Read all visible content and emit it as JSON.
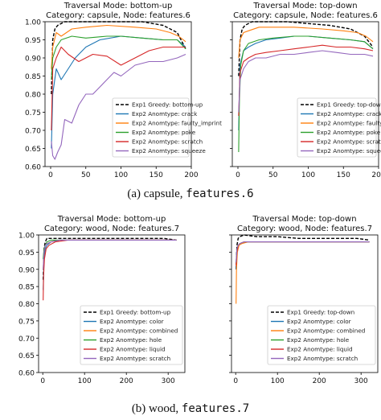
{
  "captions": {
    "a": {
      "label": "(a) capsule, ",
      "code": "features.6"
    },
    "b": {
      "label": "(b) wood, ",
      "code": "features.7"
    }
  },
  "colors": {
    "exp1": "#000000",
    "blue": "#1f77b4",
    "orange": "#ff7f0e",
    "green": "#2ca02c",
    "red": "#d62728",
    "purple": "#9467bd"
  },
  "chart_data": [
    {
      "type": "line",
      "title": "Traversal Mode: bottom-up",
      "subtitle": "Category: capsule, Node: features.6",
      "xlim": [
        -8,
        200
      ],
      "ylim": [
        0.6,
        1.0
      ],
      "xticks": [
        "0",
        "50",
        "100",
        "150",
        "200"
      ],
      "yticks": [
        "0.60",
        "0.65",
        "0.70",
        "0.75",
        "0.80",
        "0.85",
        "0.90",
        "0.95",
        "1.00"
      ],
      "legend_position": "lower-right",
      "series": [
        {
          "name": "Exp1 Greedy: bottom-up",
          "color": "exp1",
          "dashed": true,
          "x": [
            1,
            3,
            6,
            10,
            20,
            40,
            70,
            100,
            130,
            160,
            180,
            192
          ],
          "y": [
            0.8,
            0.95,
            0.98,
            0.99,
            1.0,
            1.0,
            1.0,
            1.0,
            1.0,
            0.99,
            0.97,
            0.925
          ]
        },
        {
          "name": "Exp2 Anomtype: crack",
          "color": "blue",
          "dashed": false,
          "x": [
            1,
            3,
            8,
            15,
            25,
            35,
            50,
            70,
            100,
            130,
            160,
            180,
            192
          ],
          "y": [
            0.65,
            0.8,
            0.87,
            0.84,
            0.87,
            0.9,
            0.93,
            0.95,
            0.96,
            0.955,
            0.95,
            0.95,
            0.93
          ]
        },
        {
          "name": "Exp2 Anomtype: faulty_imprint",
          "color": "orange",
          "dashed": false,
          "x": [
            1,
            3,
            8,
            15,
            30,
            50,
            80,
            120,
            150,
            170,
            182,
            192
          ],
          "y": [
            0.87,
            0.93,
            0.97,
            0.96,
            0.98,
            0.985,
            0.99,
            0.985,
            0.98,
            0.97,
            0.96,
            0.945
          ]
        },
        {
          "name": "Exp2 Anomtype: poke",
          "color": "green",
          "dashed": false,
          "x": [
            1,
            3,
            8,
            15,
            30,
            50,
            80,
            100,
            130,
            160,
            180,
            192
          ],
          "y": [
            0.84,
            0.9,
            0.93,
            0.95,
            0.96,
            0.955,
            0.96,
            0.96,
            0.955,
            0.95,
            0.95,
            0.925
          ]
        },
        {
          "name": "Exp2 Anomtype: scratch",
          "color": "red",
          "dashed": false,
          "x": [
            1,
            3,
            8,
            15,
            25,
            40,
            60,
            80,
            100,
            120,
            140,
            160,
            180,
            192
          ],
          "y": [
            0.7,
            0.87,
            0.9,
            0.93,
            0.91,
            0.89,
            0.91,
            0.905,
            0.88,
            0.9,
            0.92,
            0.93,
            0.93,
            0.93
          ]
        },
        {
          "name": "Exp2 Anomtype: squeeze",
          "color": "purple",
          "dashed": false,
          "x": [
            1,
            3,
            6,
            10,
            15,
            20,
            30,
            40,
            50,
            60,
            70,
            80,
            90,
            100,
            120,
            140,
            160,
            180,
            192
          ],
          "y": [
            0.67,
            0.63,
            0.62,
            0.64,
            0.66,
            0.73,
            0.72,
            0.77,
            0.8,
            0.8,
            0.82,
            0.84,
            0.86,
            0.85,
            0.88,
            0.89,
            0.89,
            0.9,
            0.91
          ]
        }
      ]
    },
    {
      "type": "line",
      "title": "Traversal Mode: top-down",
      "subtitle": "Category: capsule, Node: features.6",
      "xlim": [
        -8,
        200
      ],
      "ylim": [
        0.6,
        1.0
      ],
      "xticks": [
        "0",
        "50",
        "100",
        "150",
        "200"
      ],
      "yticks": [],
      "legend_position": "lower-right",
      "series": [
        {
          "name": "Exp1 Greedy: top-down",
          "color": "exp1",
          "dashed": true,
          "x": [
            1,
            3,
            6,
            10,
            20,
            40,
            70,
            100,
            130,
            160,
            180,
            192
          ],
          "y": [
            0.85,
            0.95,
            0.98,
            0.99,
            1.0,
            1.0,
            1.0,
            0.995,
            0.99,
            0.98,
            0.96,
            0.93
          ]
        },
        {
          "name": "Exp2 Anomtype: crack",
          "color": "blue",
          "dashed": false,
          "x": [
            1,
            3,
            8,
            15,
            25,
            40,
            60,
            80,
            100,
            130,
            160,
            180,
            192
          ],
          "y": [
            0.7,
            0.88,
            0.92,
            0.93,
            0.94,
            0.95,
            0.955,
            0.96,
            0.96,
            0.955,
            0.95,
            0.945,
            0.925
          ]
        },
        {
          "name": "Exp2 Anomtype: faulty_imprint",
          "color": "orange",
          "dashed": false,
          "x": [
            1,
            3,
            8,
            15,
            30,
            50,
            80,
            120,
            150,
            170,
            182,
            192
          ],
          "y": [
            0.9,
            0.95,
            0.97,
            0.975,
            0.985,
            0.985,
            0.985,
            0.98,
            0.975,
            0.97,
            0.96,
            0.945
          ]
        },
        {
          "name": "Exp2 Anomtype: poke",
          "color": "green",
          "dashed": false,
          "x": [
            1,
            2,
            4,
            8,
            15,
            30,
            50,
            80,
            100,
            130,
            160,
            180,
            192
          ],
          "y": [
            0.64,
            0.78,
            0.88,
            0.92,
            0.94,
            0.95,
            0.955,
            0.96,
            0.96,
            0.955,
            0.95,
            0.945,
            0.925
          ]
        },
        {
          "name": "Exp2 Anomtype: scratch",
          "color": "red",
          "dashed": false,
          "x": [
            1,
            3,
            8,
            15,
            25,
            40,
            60,
            80,
            100,
            120,
            140,
            160,
            180,
            192
          ],
          "y": [
            0.74,
            0.86,
            0.89,
            0.9,
            0.91,
            0.915,
            0.92,
            0.925,
            0.93,
            0.935,
            0.93,
            0.93,
            0.925,
            0.92
          ]
        },
        {
          "name": "Exp2 Anomtype: squeeze",
          "color": "purple",
          "dashed": false,
          "x": [
            1,
            3,
            8,
            15,
            25,
            40,
            60,
            80,
            100,
            120,
            140,
            160,
            180,
            192
          ],
          "y": [
            0.75,
            0.84,
            0.87,
            0.89,
            0.9,
            0.9,
            0.91,
            0.91,
            0.915,
            0.92,
            0.915,
            0.91,
            0.91,
            0.905
          ]
        }
      ]
    },
    {
      "type": "line",
      "title": "Traversal Mode: bottom-up",
      "subtitle": "Category: wood, Node: features.7",
      "xlim": [
        -10,
        340
      ],
      "ylim": [
        0.6,
        1.0
      ],
      "xticks": [
        "0",
        "100",
        "200",
        "300"
      ],
      "yticks": [
        "0.60",
        "0.65",
        "0.70",
        "0.75",
        "0.80",
        "0.85",
        "0.90",
        "0.95",
        "1.00"
      ],
      "legend_position": "lower-right",
      "series": [
        {
          "name": "Exp1 Greedy: bottom-up",
          "color": "exp1",
          "dashed": true,
          "x": [
            1,
            3,
            6,
            10,
            20,
            50,
            100,
            150,
            200,
            250,
            290,
            320
          ],
          "y": [
            0.87,
            0.96,
            0.98,
            0.99,
            0.99,
            0.99,
            0.99,
            0.99,
            0.99,
            0.99,
            0.99,
            0.985
          ]
        },
        {
          "name": "Exp2 Anomtype: color",
          "color": "blue",
          "dashed": false,
          "x": [
            1,
            3,
            6,
            10,
            20,
            40,
            80,
            150,
            250,
            320
          ],
          "y": [
            0.84,
            0.93,
            0.96,
            0.97,
            0.98,
            0.985,
            0.985,
            0.985,
            0.985,
            0.985
          ]
        },
        {
          "name": "Exp2 Anomtype: combined",
          "color": "orange",
          "dashed": false,
          "x": [
            1,
            3,
            6,
            10,
            20,
            40,
            80,
            150,
            250,
            320
          ],
          "y": [
            0.9,
            0.95,
            0.97,
            0.975,
            0.98,
            0.985,
            0.985,
            0.985,
            0.985,
            0.985
          ]
        },
        {
          "name": "Exp2 Anomtype: hole",
          "color": "green",
          "dashed": false,
          "x": [
            1,
            3,
            6,
            10,
            20,
            40,
            80,
            150,
            250,
            320
          ],
          "y": [
            0.93,
            0.96,
            0.97,
            0.98,
            0.985,
            0.985,
            0.985,
            0.985,
            0.985,
            0.985
          ]
        },
        {
          "name": "Exp2 Anomtype: liquid",
          "color": "red",
          "dashed": false,
          "x": [
            1,
            2,
            4,
            8,
            15,
            30,
            60,
            120,
            200,
            320
          ],
          "y": [
            0.81,
            0.88,
            0.93,
            0.96,
            0.97,
            0.98,
            0.985,
            0.985,
            0.985,
            0.985
          ]
        },
        {
          "name": "Exp2 Anomtype: scratch",
          "color": "purple",
          "dashed": false,
          "x": [
            1,
            3,
            6,
            10,
            20,
            40,
            80,
            150,
            250,
            320
          ],
          "y": [
            0.9,
            0.95,
            0.97,
            0.975,
            0.98,
            0.985,
            0.985,
            0.985,
            0.985,
            0.985
          ]
        }
      ]
    },
    {
      "type": "line",
      "title": "Traversal Mode: top-down",
      "subtitle": "Category: wood, Node: features.7",
      "xlim": [
        -10,
        340
      ],
      "ylim": [
        0.6,
        1.0
      ],
      "xticks": [
        "0",
        "100",
        "200",
        "300"
      ],
      "yticks": [],
      "legend_position": "lower-right",
      "series": [
        {
          "name": "Exp1 Greedy: top-down",
          "color": "exp1",
          "dashed": true,
          "x": [
            1,
            3,
            6,
            10,
            20,
            50,
            100,
            150,
            200,
            250,
            290,
            320
          ],
          "y": [
            0.9,
            0.97,
            0.99,
            0.995,
            1.0,
            0.995,
            0.995,
            0.99,
            0.99,
            0.99,
            0.99,
            0.985
          ]
        },
        {
          "name": "Exp2 Anomtype: color",
          "color": "blue",
          "dashed": false,
          "x": [
            1,
            3,
            6,
            10,
            20,
            40,
            80,
            150,
            250,
            320
          ],
          "y": [
            0.9,
            0.95,
            0.97,
            0.975,
            0.98,
            0.98,
            0.98,
            0.98,
            0.98,
            0.98
          ]
        },
        {
          "name": "Exp2 Anomtype: combined",
          "color": "orange",
          "dashed": false,
          "x": [
            1,
            2,
            4,
            8,
            15,
            30,
            60,
            120,
            200,
            320
          ],
          "y": [
            0.8,
            0.9,
            0.95,
            0.97,
            0.975,
            0.98,
            0.98,
            0.98,
            0.98,
            0.98
          ]
        },
        {
          "name": "Exp2 Anomtype: hole",
          "color": "green",
          "dashed": false,
          "x": [
            1,
            3,
            6,
            10,
            20,
            40,
            80,
            150,
            250,
            320
          ],
          "y": [
            0.92,
            0.96,
            0.97,
            0.975,
            0.98,
            0.98,
            0.98,
            0.98,
            0.98,
            0.98
          ]
        },
        {
          "name": "Exp2 Anomtype: liquid",
          "color": "red",
          "dashed": false,
          "x": [
            1,
            3,
            6,
            10,
            20,
            40,
            80,
            150,
            250,
            320
          ],
          "y": [
            0.91,
            0.95,
            0.97,
            0.975,
            0.98,
            0.98,
            0.98,
            0.98,
            0.98,
            0.98
          ]
        },
        {
          "name": "Exp2 Anomtype: scratch",
          "color": "purple",
          "dashed": false,
          "x": [
            1,
            3,
            6,
            10,
            20,
            40,
            80,
            150,
            250,
            320
          ],
          "y": [
            0.92,
            0.96,
            0.97,
            0.975,
            0.98,
            0.98,
            0.98,
            0.98,
            0.98,
            0.98
          ]
        }
      ]
    }
  ]
}
